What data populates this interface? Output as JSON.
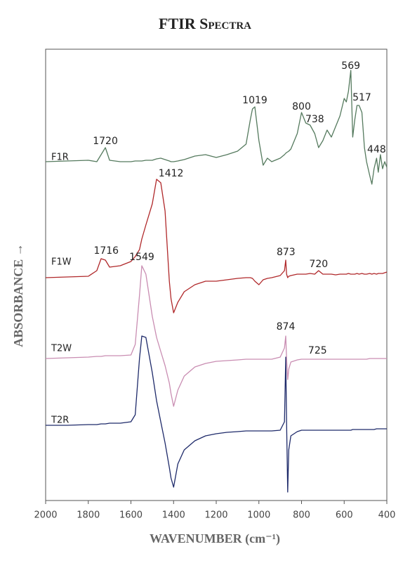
{
  "chart_data": {
    "type": "line",
    "title": "FTIR Spectra",
    "x_label": "WAVENUMBER (cm⁻¹)",
    "y_label": "ABSORBANCE →",
    "xlim": [
      2000,
      400
    ],
    "xticks": [
      2000,
      1800,
      1600,
      1400,
      1200,
      1000,
      800,
      600,
      400
    ],
    "ylim": [
      0,
      642
    ],
    "x": [
      2000,
      1900,
      1800,
      1760,
      1740,
      1720,
      1700,
      1650,
      1600,
      1580,
      1560,
      1549,
      1530,
      1500,
      1480,
      1460,
      1440,
      1420,
      1412,
      1400,
      1380,
      1350,
      1300,
      1250,
      1200,
      1150,
      1100,
      1060,
      1040,
      1030,
      1019,
      1000,
      980,
      960,
      940,
      900,
      880,
      874,
      870,
      865,
      860,
      850,
      820,
      800,
      780,
      760,
      738,
      720,
      700,
      680,
      660,
      640,
      620,
      600,
      590,
      580,
      569,
      560,
      550,
      540,
      530,
      517,
      505,
      495,
      480,
      470,
      460,
      448,
      440,
      430,
      420,
      410,
      400
    ],
    "series": [
      {
        "name": "F1R",
        "color": "#557a5e",
        "values": [
          482,
          483,
          484,
          482,
          492,
          502,
          484,
          482,
          482,
          483,
          483,
          483,
          484,
          484,
          486,
          487,
          485,
          483,
          482,
          482,
          483,
          485,
          490,
          492,
          488,
          492,
          497,
          507,
          542,
          557,
          560,
          512,
          477,
          487,
          482,
          487,
          492,
          494,
          495,
          496,
          497,
          500,
          522,
          552,
          537,
          534,
          522,
          502,
          512,
          527,
          517,
          532,
          547,
          572,
          567,
          582,
          612,
          517,
          542,
          562,
          562,
          552,
          502,
          482,
          462,
          450,
          472,
          487,
          467,
          492,
          472,
          482,
          474
        ]
      },
      {
        "name": "F1W",
        "color": "#b0282a",
        "values": [
          317,
          318,
          319,
          327,
          344,
          342,
          332,
          334,
          340,
          347,
          357,
          372,
          392,
          422,
          457,
          452,
          412,
          312,
          287,
          267,
          282,
          297,
          307,
          312,
          312,
          314,
          316,
          317,
          317,
          316,
          312,
          307,
          314,
          316,
          317,
          320,
          327,
          342,
          322,
          317,
          319,
          320,
          322,
          322,
          322,
          323,
          322,
          327,
          322,
          322,
          322,
          321,
          322,
          322,
          322,
          323,
          322,
          322,
          322,
          323,
          322,
          323,
          322,
          322,
          323,
          322,
          323,
          322,
          323,
          323,
          323,
          324,
          325
        ]
      },
      {
        "name": "T2W",
        "color": "#c98db2",
        "values": [
          202,
          203,
          204,
          205,
          205,
          206,
          206,
          206,
          207,
          222,
          292,
          334,
          322,
          262,
          232,
          212,
          192,
          167,
          152,
          134,
          157,
          177,
          190,
          195,
          198,
          199,
          200,
          201,
          201,
          201,
          201,
          201,
          201,
          201,
          201,
          204,
          217,
          234,
          202,
          172,
          187,
          197,
          200,
          201,
          201,
          201,
          201,
          201,
          201,
          201,
          201,
          201,
          201,
          201,
          201,
          201,
          201,
          201,
          201,
          201,
          201,
          201,
          201,
          201,
          202,
          202,
          202,
          202,
          202,
          202,
          202,
          202,
          202
        ]
      },
      {
        "name": "T2R",
        "color": "#1e2a6a",
        "values": [
          107,
          107,
          108,
          108,
          109,
          109,
          110,
          110,
          112,
          122,
          202,
          234,
          232,
          182,
          142,
          112,
          82,
          47,
          32,
          19,
          52,
          72,
          85,
          92,
          95,
          97,
          98,
          99,
          99,
          99,
          99,
          99,
          99,
          99,
          99,
          100,
          112,
          204,
          112,
          12,
          72,
          92,
          98,
          100,
          100,
          100,
          100,
          100,
          100,
          100,
          100,
          100,
          100,
          100,
          100,
          100,
          100,
          101,
          101,
          101,
          101,
          101,
          101,
          101,
          101,
          101,
          101,
          102,
          102,
          102,
          102,
          102,
          102
        ]
      }
    ],
    "annotations": [
      {
        "x": 1720,
        "y": 511
      },
      {
        "x": 1019,
        "y": 569
      },
      {
        "x": 800,
        "y": 560
      },
      {
        "x": 738,
        "y": 542
      },
      {
        "x": 569,
        "y": 618
      },
      {
        "x": 517,
        "y": 573
      },
      {
        "x": 448,
        "y": 499
      },
      {
        "x": 1412,
        "y": 465
      },
      {
        "x": 1716,
        "y": 355
      },
      {
        "x": 873,
        "y": 353
      },
      {
        "x": 720,
        "y": 336
      },
      {
        "x": 1549,
        "y": 346
      },
      {
        "x": 874,
        "y": 247
      },
      {
        "x": 725,
        "y": 213
      }
    ]
  }
}
